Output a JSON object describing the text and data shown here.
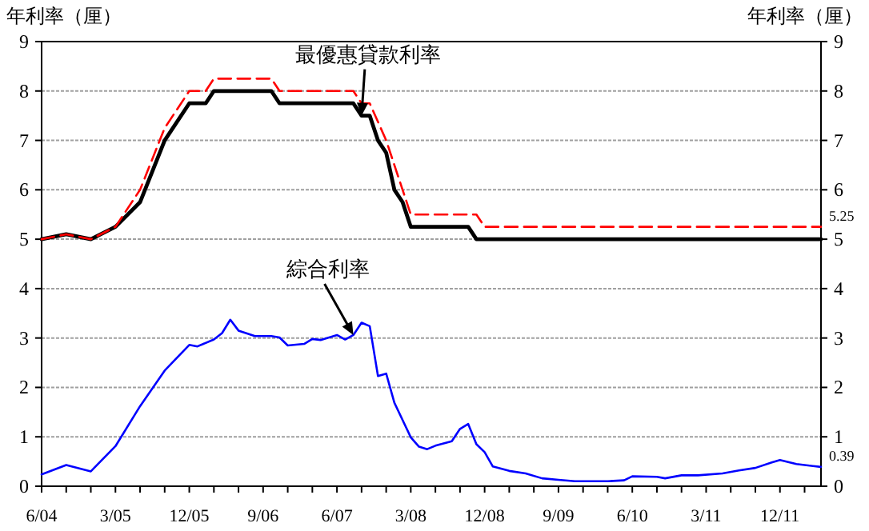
{
  "chart_data": {
    "type": "line",
    "ylabel": "年利率（厘）",
    "y2label": "年利率（厘）",
    "xlim": [
      "2004-06",
      "2012-05"
    ],
    "ylim": [
      0,
      9
    ],
    "yticks": [
      0,
      1,
      2,
      3,
      4,
      5,
      6,
      7,
      8,
      9
    ],
    "y2lim": [
      0,
      9
    ],
    "y2ticks": [
      0,
      1,
      2,
      3,
      4,
      5,
      6,
      7,
      8,
      9
    ],
    "xticks": [
      {
        "value": "2004-06",
        "label": "6/04"
      },
      {
        "value": "2004-09",
        "label": null
      },
      {
        "value": "2004-12",
        "label": null
      },
      {
        "value": "2005-03",
        "label": "3/05"
      },
      {
        "value": "2005-06",
        "label": null
      },
      {
        "value": "2005-09",
        "label": null
      },
      {
        "value": "2005-12",
        "label": "12/05"
      },
      {
        "value": "2006-03",
        "label": null
      },
      {
        "value": "2006-06",
        "label": null
      },
      {
        "value": "2006-09",
        "label": "9/06"
      },
      {
        "value": "2006-12",
        "label": null
      },
      {
        "value": "2007-03",
        "label": null
      },
      {
        "value": "2007-06",
        "label": "6/07"
      },
      {
        "value": "2007-09",
        "label": null
      },
      {
        "value": "2007-12",
        "label": null
      },
      {
        "value": "2008-03",
        "label": "3/08"
      },
      {
        "value": "2008-06",
        "label": null
      },
      {
        "value": "2008-09",
        "label": null
      },
      {
        "value": "2008-12",
        "label": "12/08"
      },
      {
        "value": "2009-03",
        "label": null
      },
      {
        "value": "2009-06",
        "label": null
      },
      {
        "value": "2009-09",
        "label": "9/09"
      },
      {
        "value": "2009-12",
        "label": null
      },
      {
        "value": "2010-03",
        "label": null
      },
      {
        "value": "2010-06",
        "label": "6/10"
      },
      {
        "value": "2010-09",
        "label": null
      },
      {
        "value": "2010-12",
        "label": null
      },
      {
        "value": "2011-03",
        "label": "3/11"
      },
      {
        "value": "2011-06",
        "label": null
      },
      {
        "value": "2011-09",
        "label": null
      },
      {
        "value": "2011-12",
        "label": "12/11"
      },
      {
        "value": "2012-03",
        "label": null
      }
    ],
    "grid": "y",
    "series": [
      {
        "color": "#ff0000",
        "line_style": "dashed",
        "x": [
          "2004-06",
          "2004-09",
          "2004-12",
          "2005-03",
          "2005-06",
          "2005-09",
          "2005-12",
          "2006-02",
          "2006-03",
          "2006-10",
          "2006-11",
          "2007-08",
          "2007-09",
          "2007-10",
          "2007-12",
          "2008-02",
          "2008-03",
          "2008-11",
          "2008-12",
          "2012-05"
        ],
        "values": [
          5.0,
          5.1,
          5.0,
          5.25,
          6.0,
          7.25,
          8.0,
          8.0,
          8.25,
          8.25,
          8.0,
          8.0,
          7.75,
          7.75,
          7.0,
          6.0,
          5.5,
          5.5,
          5.25,
          5.25
        ]
      },
      {
        "color": "#000000",
        "line_style": "solid",
        "x": [
          "2004-06",
          "2004-09",
          "2004-12",
          "2005-03",
          "2005-06",
          "2005-09",
          "2005-12",
          "2006-02",
          "2006-03",
          "2006-10",
          "2006-11",
          "2007-08",
          "2007-09",
          "2007-10",
          "2007-11",
          "2007-12",
          "2008-01",
          "2008-02",
          "2008-03",
          "2008-10",
          "2008-11",
          "2012-05"
        ],
        "values": [
          5.0,
          5.1,
          5.0,
          5.25,
          5.75,
          7.0,
          7.75,
          7.75,
          8.0,
          8.0,
          7.75,
          7.75,
          7.5,
          7.5,
          7.0,
          6.75,
          6.0,
          5.75,
          5.25,
          5.25,
          5.0,
          5.0
        ]
      },
      {
        "color": "#0000ff",
        "line_style": "solid",
        "x": [
          "2004-06",
          "2004-09",
          "2004-12",
          "2005-03",
          "2005-06",
          "2005-09",
          "2005-12",
          "2006-01",
          "2006-03",
          "2006-04",
          "2006-05",
          "2006-06",
          "2006-08",
          "2006-10",
          "2006-11",
          "2006-12",
          "2007-02",
          "2007-03",
          "2007-04",
          "2007-06",
          "2007-07",
          "2007-08",
          "2007-09",
          "2007-10",
          "2007-11",
          "2007-12",
          "2008-01",
          "2008-03",
          "2008-04",
          "2008-05",
          "2008-06",
          "2008-08",
          "2008-09",
          "2008-10",
          "2008-11",
          "2008-12",
          "2009-01",
          "2009-03",
          "2009-05",
          "2009-07",
          "2009-09",
          "2009-11",
          "2010-03",
          "2010-05",
          "2010-06",
          "2010-09",
          "2010-10",
          "2010-12",
          "2011-02",
          "2011-05",
          "2011-07",
          "2011-09",
          "2011-11",
          "2011-12",
          "2012-02",
          "2012-05"
        ],
        "values": [
          0.24,
          0.43,
          0.3,
          0.81,
          1.62,
          2.34,
          2.86,
          2.83,
          2.97,
          3.1,
          3.37,
          3.15,
          3.04,
          3.04,
          3.01,
          2.85,
          2.88,
          2.98,
          2.96,
          3.06,
          2.97,
          3.06,
          3.31,
          3.24,
          2.23,
          2.28,
          1.69,
          0.99,
          0.8,
          0.75,
          0.82,
          0.91,
          1.16,
          1.26,
          0.85,
          0.69,
          0.4,
          0.31,
          0.26,
          0.16,
          0.13,
          0.1,
          0.1,
          0.12,
          0.2,
          0.19,
          0.16,
          0.22,
          0.22,
          0.26,
          0.32,
          0.37,
          0.48,
          0.53,
          0.45,
          0.39
        ]
      }
    ],
    "annotations": [
      {
        "text": "最優惠貸款利率",
        "x": "2007-09",
        "y": 7.5
      },
      {
        "text": "綜合利率",
        "x": "2007-08",
        "y": 3.06
      },
      {
        "text": "5.25",
        "x": "2012-05",
        "y": 5.25
      },
      {
        "text": "0.39",
        "x": "2012-05",
        "y": 0.39
      }
    ]
  }
}
